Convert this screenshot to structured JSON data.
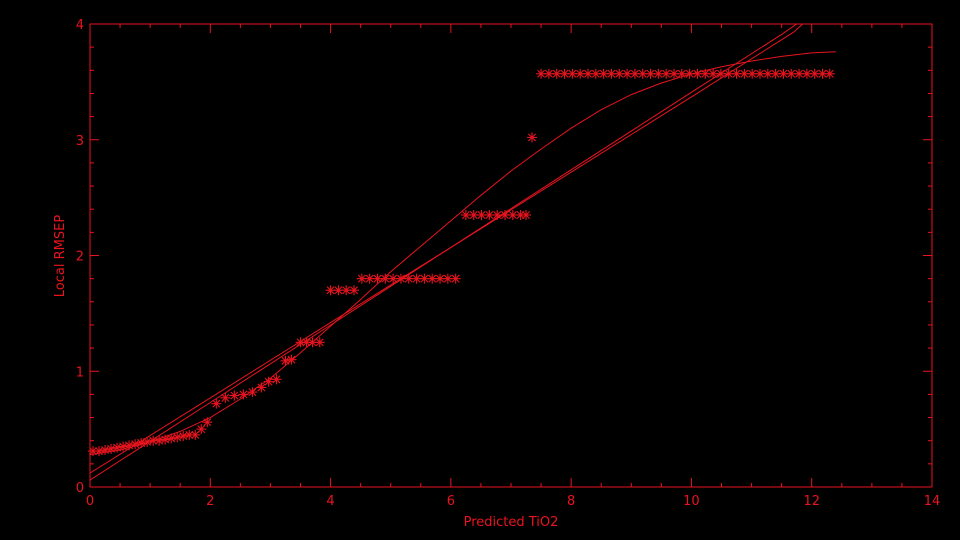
{
  "chart_data": {
    "type": "scatter",
    "title": "",
    "xlabel": "Predicted TiO2",
    "ylabel": "Local RMSEP",
    "xlim": [
      0,
      14
    ],
    "ylim": [
      0,
      4
    ],
    "x_ticks": [
      0,
      2,
      4,
      6,
      8,
      10,
      12,
      14
    ],
    "y_ticks": [
      0,
      1,
      2,
      3,
      4
    ],
    "grid": false,
    "colors": {
      "background": "#000000",
      "foreground": "#e8141e"
    },
    "marker": "asterisk",
    "series": [
      {
        "kind": "points",
        "points": [
          [
            0.05,
            0.31
          ],
          [
            0.15,
            0.31
          ],
          [
            0.25,
            0.32
          ],
          [
            0.35,
            0.33
          ],
          [
            0.45,
            0.34
          ],
          [
            0.55,
            0.35
          ],
          [
            0.65,
            0.36
          ],
          [
            0.75,
            0.37
          ],
          [
            0.85,
            0.38
          ],
          [
            0.95,
            0.39
          ],
          [
            1.05,
            0.4
          ],
          [
            1.15,
            0.4
          ],
          [
            1.25,
            0.41
          ],
          [
            1.35,
            0.42
          ],
          [
            1.45,
            0.43
          ],
          [
            1.55,
            0.44
          ],
          [
            1.65,
            0.45
          ],
          [
            1.75,
            0.45
          ],
          [
            1.85,
            0.5
          ],
          [
            1.95,
            0.56
          ],
          [
            2.1,
            0.72
          ],
          [
            2.25,
            0.77
          ],
          [
            2.4,
            0.79
          ],
          [
            2.55,
            0.8
          ],
          [
            2.7,
            0.82
          ],
          [
            2.85,
            0.86
          ],
          [
            2.97,
            0.91
          ],
          [
            3.1,
            0.93
          ],
          [
            3.25,
            1.09
          ],
          [
            3.35,
            1.1
          ],
          [
            3.5,
            1.25
          ],
          [
            3.6,
            1.25
          ],
          [
            3.7,
            1.25
          ],
          [
            3.82,
            1.25
          ],
          [
            4.0,
            1.7
          ],
          [
            4.13,
            1.7
          ],
          [
            4.26,
            1.7
          ],
          [
            4.39,
            1.7
          ],
          [
            4.52,
            1.8
          ],
          [
            4.65,
            1.8
          ],
          [
            4.78,
            1.8
          ],
          [
            4.91,
            1.8
          ],
          [
            5.04,
            1.8
          ],
          [
            5.17,
            1.8
          ],
          [
            5.3,
            1.8
          ],
          [
            5.43,
            1.8
          ],
          [
            5.56,
            1.8
          ],
          [
            5.69,
            1.8
          ],
          [
            5.82,
            1.8
          ],
          [
            5.95,
            1.8
          ],
          [
            6.08,
            1.8
          ],
          [
            6.25,
            2.35
          ],
          [
            6.38,
            2.35
          ],
          [
            6.51,
            2.35
          ],
          [
            6.64,
            2.35
          ],
          [
            6.77,
            2.35
          ],
          [
            6.9,
            2.35
          ],
          [
            7.03,
            2.35
          ],
          [
            7.16,
            2.35
          ],
          [
            7.25,
            2.35
          ],
          [
            7.35,
            3.02
          ],
          [
            7.5,
            3.57
          ],
          [
            7.63,
            3.57
          ],
          [
            7.76,
            3.57
          ],
          [
            7.89,
            3.57
          ],
          [
            8.02,
            3.57
          ],
          [
            8.15,
            3.57
          ],
          [
            8.28,
            3.57
          ],
          [
            8.41,
            3.57
          ],
          [
            8.54,
            3.57
          ],
          [
            8.67,
            3.57
          ],
          [
            8.8,
            3.57
          ],
          [
            8.93,
            3.57
          ],
          [
            9.06,
            3.57
          ],
          [
            9.19,
            3.57
          ],
          [
            9.32,
            3.57
          ],
          [
            9.45,
            3.57
          ],
          [
            9.58,
            3.57
          ],
          [
            9.71,
            3.57
          ],
          [
            9.84,
            3.57
          ],
          [
            9.97,
            3.57
          ],
          [
            10.1,
            3.57
          ],
          [
            10.23,
            3.57
          ],
          [
            10.36,
            3.57
          ],
          [
            10.49,
            3.57
          ],
          [
            10.62,
            3.57
          ],
          [
            10.75,
            3.57
          ],
          [
            10.88,
            3.57
          ],
          [
            11.01,
            3.57
          ],
          [
            11.14,
            3.57
          ],
          [
            11.27,
            3.57
          ],
          [
            11.4,
            3.57
          ],
          [
            11.53,
            3.57
          ],
          [
            11.66,
            3.57
          ],
          [
            11.79,
            3.57
          ],
          [
            11.92,
            3.57
          ],
          [
            12.05,
            3.57
          ],
          [
            12.18,
            3.57
          ],
          [
            12.3,
            3.57
          ]
        ]
      },
      {
        "kind": "line",
        "points": [
          [
            0,
            0.12
          ],
          [
            2,
            0.77
          ],
          [
            4,
            1.42
          ],
          [
            6,
            2.07
          ],
          [
            8,
            2.72
          ],
          [
            10,
            3.37
          ],
          [
            11.7,
            3.93
          ],
          [
            11.85,
            4.0
          ]
        ]
      },
      {
        "kind": "line",
        "points": [
          [
            0,
            0.06
          ],
          [
            2,
            0.73
          ],
          [
            4,
            1.4
          ],
          [
            6,
            2.07
          ],
          [
            8,
            2.74
          ],
          [
            10,
            3.41
          ],
          [
            11.5,
            3.91
          ],
          [
            11.75,
            4.0
          ]
        ]
      },
      {
        "kind": "line",
        "points": [
          [
            0,
            0.28
          ],
          [
            0.5,
            0.32
          ],
          [
            1.0,
            0.39
          ],
          [
            1.5,
            0.48
          ],
          [
            2.0,
            0.6
          ],
          [
            2.5,
            0.76
          ],
          [
            3.0,
            0.94
          ],
          [
            3.5,
            1.16
          ],
          [
            4.0,
            1.39
          ],
          [
            4.5,
            1.62
          ],
          [
            5.0,
            1.86
          ],
          [
            5.5,
            2.08
          ],
          [
            6.0,
            2.3
          ],
          [
            6.5,
            2.52
          ],
          [
            7.0,
            2.73
          ],
          [
            7.5,
            2.92
          ],
          [
            8.0,
            3.1
          ],
          [
            8.5,
            3.26
          ],
          [
            9.0,
            3.39
          ],
          [
            9.5,
            3.49
          ],
          [
            10.0,
            3.57
          ],
          [
            10.5,
            3.63
          ],
          [
            11.0,
            3.68
          ],
          [
            11.5,
            3.72
          ],
          [
            12.0,
            3.75
          ],
          [
            12.4,
            3.76
          ]
        ]
      }
    ]
  }
}
